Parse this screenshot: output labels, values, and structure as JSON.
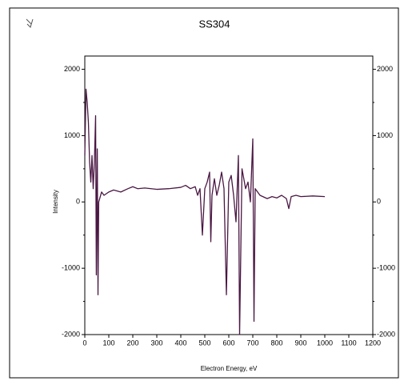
{
  "chart_data": {
    "type": "line",
    "title": "SS304",
    "x_label": "Electron Energy, eV",
    "y_label": "Intensity",
    "color": "#4a1743",
    "x": [
      0,
      5,
      10,
      15,
      20,
      25,
      30,
      35,
      40,
      45,
      48,
      52,
      55,
      58,
      62,
      70,
      80,
      100,
      120,
      150,
      180,
      200,
      220,
      250,
      300,
      350,
      400,
      420,
      440,
      460,
      470,
      480,
      490,
      500,
      510,
      520,
      525,
      530,
      540,
      550,
      560,
      570,
      580,
      590,
      600,
      610,
      620,
      630,
      640,
      645,
      655,
      670,
      680,
      690,
      700,
      705,
      710,
      730,
      760,
      780,
      800,
      820,
      840,
      850,
      860,
      880,
      900,
      950,
      1000
    ],
    "values": [
      700,
      1700,
      1500,
      1200,
      600,
      300,
      700,
      200,
      600,
      1300,
      -1100,
      800,
      -1400,
      0,
      50,
      150,
      100,
      150,
      180,
      150,
      200,
      230,
      200,
      210,
      190,
      200,
      220,
      250,
      200,
      230,
      100,
      200,
      -500,
      200,
      300,
      450,
      -600,
      100,
      350,
      100,
      250,
      450,
      200,
      -1400,
      300,
      400,
      100,
      -300,
      700,
      -2000,
      500,
      200,
      300,
      0,
      950,
      -1800,
      200,
      100,
      50,
      80,
      60,
      100,
      50,
      -100,
      80,
      100,
      80,
      90,
      80
    ],
    "xlim": [
      0,
      1200
    ],
    "xticks": [
      0,
      100,
      200,
      300,
      400,
      500,
      600,
      700,
      800,
      900,
      1000,
      1100,
      1200
    ],
    "ylim": [
      -2000,
      2200
    ],
    "yticks": [
      -2000,
      -1000,
      0,
      1000,
      2000
    ],
    "yminorticks": [
      -1500,
      -500,
      500,
      1500
    ],
    "grid": false
  }
}
